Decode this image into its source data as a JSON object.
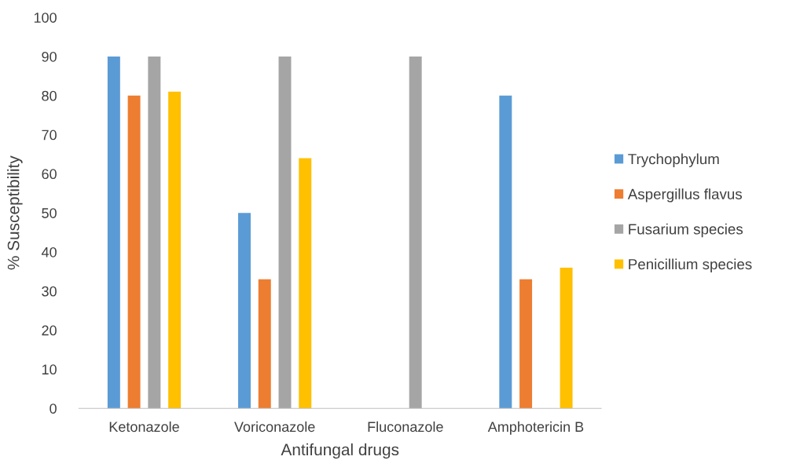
{
  "chart_data": {
    "type": "bar",
    "xlabel": "Antifungal drugs",
    "ylabel": "% Susceptibility",
    "categories": [
      "Ketonazole",
      "Voriconazole",
      "Fluconazole",
      "Amphotericin B"
    ],
    "series": [
      {
        "name": "Trychophylum",
        "color": "#5b9bd5",
        "values": [
          90,
          50,
          0,
          80
        ]
      },
      {
        "name": "Aspergillus flavus",
        "color": "#ed7d31",
        "values": [
          80,
          33,
          0,
          33
        ]
      },
      {
        "name": "Fusarium species",
        "color": "#a5a5a5",
        "values": [
          90,
          90,
          90,
          0
        ]
      },
      {
        "name": "Penicillium species",
        "color": "#ffc000",
        "values": [
          81,
          64,
          0,
          36
        ]
      }
    ],
    "ylim": [
      0,
      100
    ],
    "yticks": [
      0,
      10,
      20,
      30,
      40,
      50,
      60,
      70,
      80,
      90,
      100
    ],
    "legend": "right"
  }
}
